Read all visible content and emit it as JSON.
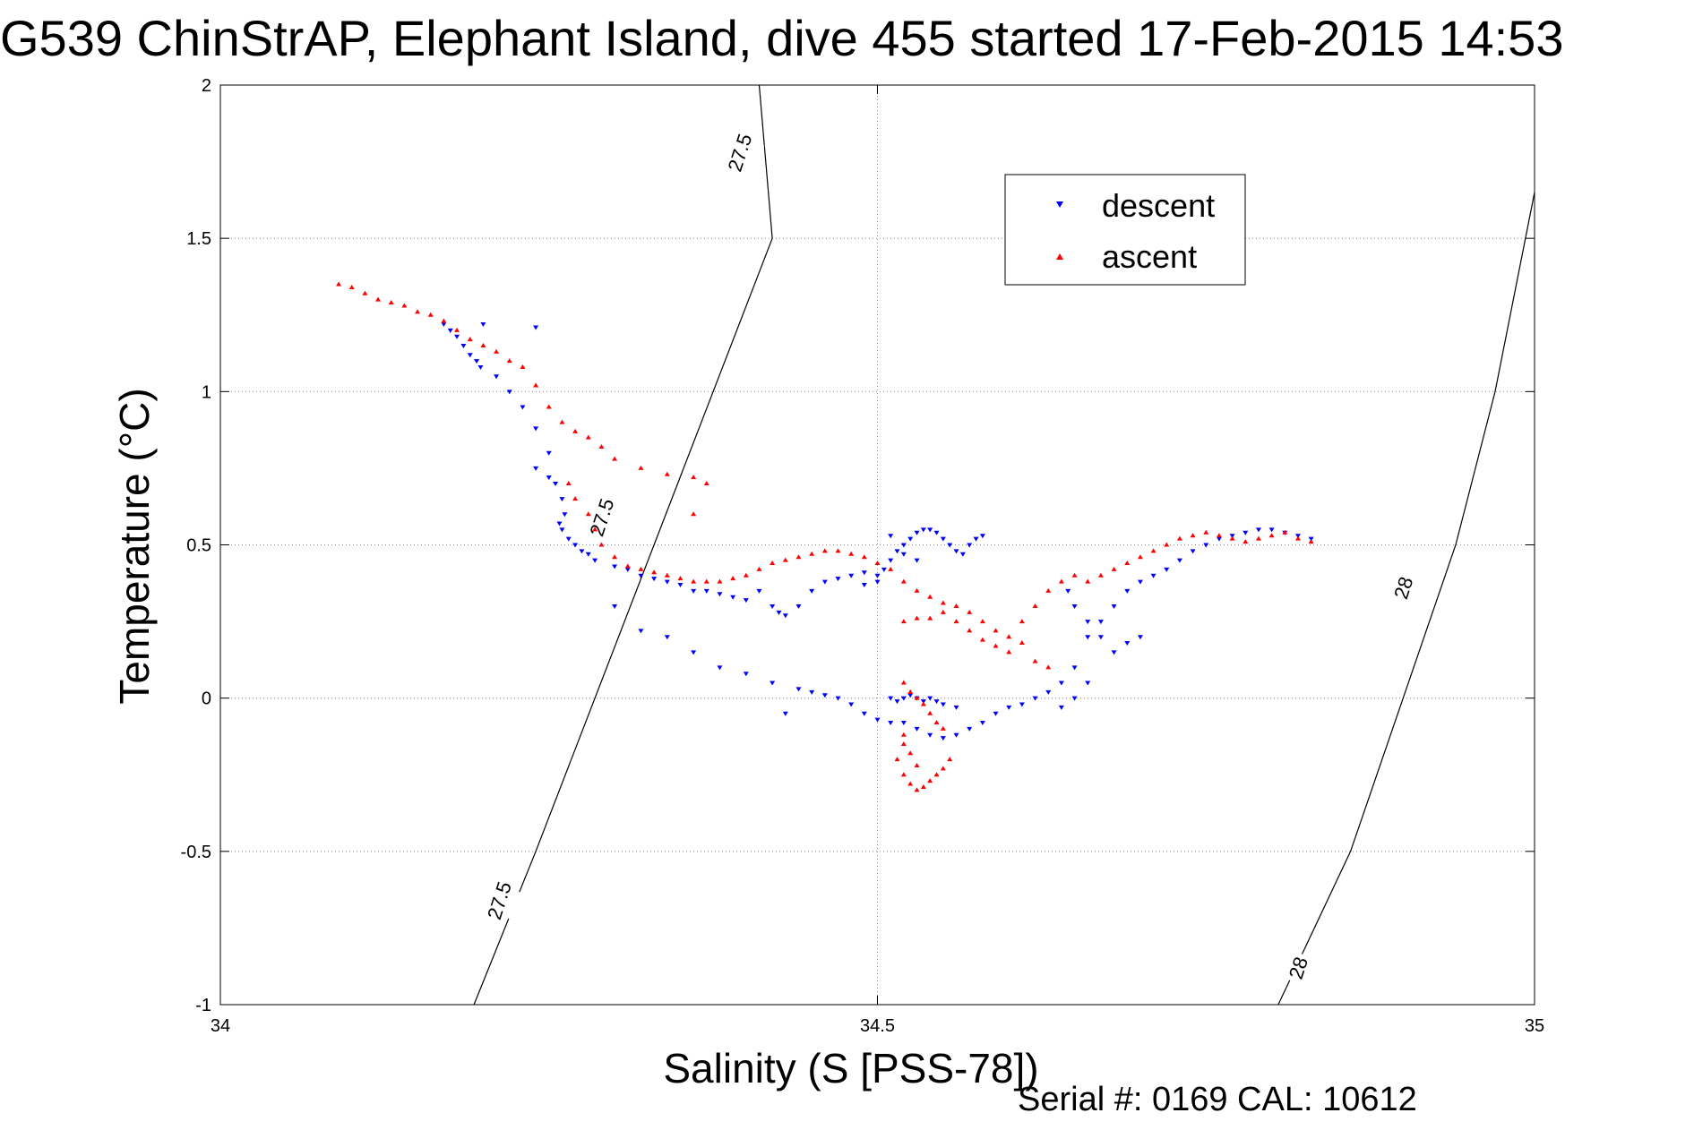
{
  "chart_data": {
    "type": "scatter",
    "title": "G539 ChinStrAP, Elephant Island, dive 455 started 17-Feb-2015 14:53",
    "xlabel": "Salinity (S [PSS-78])",
    "ylabel": "Temperature (°C)",
    "xlim": [
      34,
      35
    ],
    "ylim": [
      -1,
      2
    ],
    "x_ticks": [
      "34",
      "34.5",
      "35"
    ],
    "y_ticks": [
      "2",
      "1.5",
      "1",
      "0.5",
      "0",
      "-0.5",
      "-1"
    ],
    "grid": true,
    "legend": {
      "placement": "top-right",
      "entries": [
        "descent",
        "ascent"
      ]
    },
    "colors": {
      "descent": "#0000ff",
      "ascent": "#ff0000"
    },
    "footer": "Serial #: 0169 CAL: 10612",
    "contours": [
      {
        "label": "27.5",
        "points": [
          [
            34.193,
            -1.0
          ],
          [
            34.24,
            -0.5
          ],
          [
            34.285,
            0.0
          ],
          [
            34.33,
            0.5
          ],
          [
            34.375,
            1.0
          ],
          [
            34.42,
            1.5
          ],
          [
            34.41,
            2.0
          ]
        ]
      },
      {
        "label": "28",
        "points": [
          [
            34.805,
            -1.0
          ],
          [
            34.86,
            -0.5
          ],
          [
            34.9,
            0.0
          ],
          [
            34.94,
            0.5
          ],
          [
            34.97,
            1.0
          ],
          [
            35.0,
            1.65
          ]
        ]
      }
    ],
    "contour_labels": [
      {
        "text": "27.5",
        "x": 34.395,
        "y": 1.78
      },
      {
        "text": "27.5",
        "x": 34.29,
        "y": 0.59
      },
      {
        "text": "27.5",
        "x": 34.212,
        "y": -0.66
      },
      {
        "text": "28",
        "x": 34.9,
        "y": 0.36
      },
      {
        "text": "28",
        "x": 34.82,
        "y": -0.88
      }
    ],
    "series": [
      {
        "name": "descent",
        "marker": "triangle-down",
        "points": [
          [
            34.17,
            1.22
          ],
          [
            34.175,
            1.2
          ],
          [
            34.18,
            1.18
          ],
          [
            34.185,
            1.15
          ],
          [
            34.19,
            1.12
          ],
          [
            34.195,
            1.1
          ],
          [
            34.198,
            1.08
          ],
          [
            34.2,
            1.22
          ],
          [
            34.21,
            1.05
          ],
          [
            34.22,
            1.0
          ],
          [
            34.24,
            1.21
          ],
          [
            34.23,
            0.95
          ],
          [
            34.24,
            0.88
          ],
          [
            34.25,
            0.8
          ],
          [
            34.24,
            0.75
          ],
          [
            34.25,
            0.72
          ],
          [
            34.255,
            0.7
          ],
          [
            34.26,
            0.65
          ],
          [
            34.262,
            0.6
          ],
          [
            34.258,
            0.57
          ],
          [
            34.26,
            0.55
          ],
          [
            34.265,
            0.52
          ],
          [
            34.27,
            0.5
          ],
          [
            34.275,
            0.48
          ],
          [
            34.28,
            0.47
          ],
          [
            34.285,
            0.45
          ],
          [
            34.3,
            0.43
          ],
          [
            34.31,
            0.42
          ],
          [
            34.32,
            0.4
          ],
          [
            34.33,
            0.39
          ],
          [
            34.34,
            0.38
          ],
          [
            34.35,
            0.37
          ],
          [
            34.36,
            0.35
          ],
          [
            34.37,
            0.35
          ],
          [
            34.38,
            0.34
          ],
          [
            34.39,
            0.33
          ],
          [
            34.4,
            0.32
          ],
          [
            34.41,
            0.35
          ],
          [
            34.42,
            0.3
          ],
          [
            34.425,
            0.28
          ],
          [
            34.43,
            0.27
          ],
          [
            34.44,
            0.3
          ],
          [
            34.45,
            0.35
          ],
          [
            34.46,
            0.38
          ],
          [
            34.47,
            0.39
          ],
          [
            34.48,
            0.4
          ],
          [
            34.49,
            0.41
          ],
          [
            34.5,
            0.4
          ],
          [
            34.505,
            0.42
          ],
          [
            34.51,
            0.45
          ],
          [
            34.515,
            0.48
          ],
          [
            34.52,
            0.5
          ],
          [
            34.525,
            0.52
          ],
          [
            34.53,
            0.54
          ],
          [
            34.535,
            0.55
          ],
          [
            34.54,
            0.55
          ],
          [
            34.545,
            0.54
          ],
          [
            34.55,
            0.52
          ],
          [
            34.555,
            0.5
          ],
          [
            34.56,
            0.48
          ],
          [
            34.565,
            0.47
          ],
          [
            34.57,
            0.5
          ],
          [
            34.575,
            0.52
          ],
          [
            34.58,
            0.53
          ],
          [
            34.51,
            0.53
          ],
          [
            34.52,
            0.47
          ],
          [
            34.53,
            0.45
          ],
          [
            34.5,
            0.38
          ],
          [
            34.49,
            0.37
          ],
          [
            34.3,
            0.3
          ],
          [
            34.32,
            0.22
          ],
          [
            34.34,
            0.2
          ],
          [
            34.36,
            0.15
          ],
          [
            34.38,
            0.1
          ],
          [
            34.4,
            0.08
          ],
          [
            34.42,
            0.05
          ],
          [
            34.44,
            0.03
          ],
          [
            34.45,
            0.02
          ],
          [
            34.46,
            0.01
          ],
          [
            34.47,
            0.0
          ],
          [
            34.48,
            -0.02
          ],
          [
            34.49,
            -0.05
          ],
          [
            34.5,
            -0.07
          ],
          [
            34.51,
            -0.08
          ],
          [
            34.52,
            -0.08
          ],
          [
            34.53,
            -0.1
          ],
          [
            34.54,
            -0.12
          ],
          [
            34.55,
            -0.13
          ],
          [
            34.56,
            -0.12
          ],
          [
            34.57,
            -0.1
          ],
          [
            34.58,
            -0.08
          ],
          [
            34.59,
            -0.05
          ],
          [
            34.6,
            -0.03
          ],
          [
            34.61,
            -0.02
          ],
          [
            34.62,
            0.0
          ],
          [
            34.63,
            0.02
          ],
          [
            34.64,
            0.05
          ],
          [
            34.65,
            0.1
          ],
          [
            34.66,
            0.2
          ],
          [
            34.67,
            0.25
          ],
          [
            34.68,
            0.3
          ],
          [
            34.69,
            0.35
          ],
          [
            34.7,
            0.38
          ],
          [
            34.71,
            0.4
          ],
          [
            34.72,
            0.42
          ],
          [
            34.73,
            0.45
          ],
          [
            34.74,
            0.48
          ],
          [
            34.75,
            0.5
          ],
          [
            34.76,
            0.52
          ],
          [
            34.77,
            0.53
          ],
          [
            34.78,
            0.54
          ],
          [
            34.79,
            0.55
          ],
          [
            34.8,
            0.55
          ],
          [
            34.81,
            0.54
          ],
          [
            34.82,
            0.53
          ],
          [
            34.83,
            0.52
          ],
          [
            34.645,
            0.35
          ],
          [
            34.65,
            0.3
          ],
          [
            34.66,
            0.25
          ],
          [
            34.67,
            0.2
          ],
          [
            34.68,
            0.15
          ],
          [
            34.69,
            0.18
          ],
          [
            34.7,
            0.2
          ],
          [
            34.66,
            0.05
          ],
          [
            34.65,
            0.0
          ],
          [
            34.64,
            -0.03
          ],
          [
            34.43,
            -0.05
          ],
          [
            34.51,
            0.0
          ],
          [
            34.515,
            -0.01
          ],
          [
            34.52,
            0.0
          ],
          [
            34.525,
            0.01
          ],
          [
            34.53,
            0.0
          ],
          [
            34.535,
            -0.01
          ],
          [
            34.54,
            0.0
          ],
          [
            34.545,
            -0.01
          ],
          [
            34.55,
            -0.02
          ],
          [
            34.56,
            -0.03
          ]
        ]
      },
      {
        "name": "ascent",
        "marker": "triangle-up",
        "points": [
          [
            34.09,
            1.35
          ],
          [
            34.1,
            1.34
          ],
          [
            34.11,
            1.32
          ],
          [
            34.12,
            1.3
          ],
          [
            34.13,
            1.29
          ],
          [
            34.14,
            1.28
          ],
          [
            34.15,
            1.26
          ],
          [
            34.16,
            1.25
          ],
          [
            34.17,
            1.23
          ],
          [
            34.18,
            1.2
          ],
          [
            34.19,
            1.17
          ],
          [
            34.2,
            1.15
          ],
          [
            34.21,
            1.13
          ],
          [
            34.22,
            1.1
          ],
          [
            34.23,
            1.08
          ],
          [
            34.24,
            1.02
          ],
          [
            34.25,
            0.95
          ],
          [
            34.26,
            0.9
          ],
          [
            34.27,
            0.87
          ],
          [
            34.28,
            0.85
          ],
          [
            34.29,
            0.82
          ],
          [
            34.3,
            0.78
          ],
          [
            34.32,
            0.75
          ],
          [
            34.34,
            0.73
          ],
          [
            34.36,
            0.72
          ],
          [
            34.37,
            0.7
          ],
          [
            34.36,
            0.6
          ],
          [
            34.265,
            0.7
          ],
          [
            34.27,
            0.65
          ],
          [
            34.28,
            0.6
          ],
          [
            34.285,
            0.55
          ],
          [
            34.29,
            0.5
          ],
          [
            34.3,
            0.46
          ],
          [
            34.31,
            0.43
          ],
          [
            34.32,
            0.42
          ],
          [
            34.33,
            0.41
          ],
          [
            34.34,
            0.4
          ],
          [
            34.35,
            0.39
          ],
          [
            34.36,
            0.38
          ],
          [
            34.37,
            0.38
          ],
          [
            34.38,
            0.38
          ],
          [
            34.39,
            0.39
          ],
          [
            34.4,
            0.4
          ],
          [
            34.41,
            0.42
          ],
          [
            34.42,
            0.44
          ],
          [
            34.43,
            0.45
          ],
          [
            34.44,
            0.46
          ],
          [
            34.45,
            0.47
          ],
          [
            34.46,
            0.48
          ],
          [
            34.47,
            0.48
          ],
          [
            34.48,
            0.47
          ],
          [
            34.49,
            0.46
          ],
          [
            34.5,
            0.44
          ],
          [
            34.51,
            0.42
          ],
          [
            34.52,
            0.38
          ],
          [
            34.53,
            0.35
          ],
          [
            34.54,
            0.33
          ],
          [
            34.55,
            0.31
          ],
          [
            34.56,
            0.3
          ],
          [
            34.57,
            0.28
          ],
          [
            34.58,
            0.25
          ],
          [
            34.59,
            0.22
          ],
          [
            34.6,
            0.2
          ],
          [
            34.61,
            0.18
          ],
          [
            34.6,
            0.15
          ],
          [
            34.59,
            0.17
          ],
          [
            34.58,
            0.19
          ],
          [
            34.57,
            0.22
          ],
          [
            34.56,
            0.25
          ],
          [
            34.55,
            0.28
          ],
          [
            34.54,
            0.26
          ],
          [
            34.53,
            0.26
          ],
          [
            34.52,
            0.25
          ],
          [
            34.62,
            0.12
          ],
          [
            34.63,
            0.1
          ],
          [
            34.61,
            0.25
          ],
          [
            34.62,
            0.3
          ],
          [
            34.63,
            0.35
          ],
          [
            34.64,
            0.38
          ],
          [
            34.65,
            0.4
          ],
          [
            34.66,
            0.38
          ],
          [
            34.67,
            0.4
          ],
          [
            34.68,
            0.42
          ],
          [
            34.69,
            0.44
          ],
          [
            34.7,
            0.46
          ],
          [
            34.71,
            0.48
          ],
          [
            34.72,
            0.5
          ],
          [
            34.73,
            0.52
          ],
          [
            34.74,
            0.53
          ],
          [
            34.75,
            0.54
          ],
          [
            34.76,
            0.53
          ],
          [
            34.77,
            0.52
          ],
          [
            34.78,
            0.51
          ],
          [
            34.79,
            0.52
          ],
          [
            34.8,
            0.53
          ],
          [
            34.81,
            0.54
          ],
          [
            34.82,
            0.52
          ],
          [
            34.83,
            0.51
          ],
          [
            34.52,
            0.05
          ],
          [
            34.525,
            0.02
          ],
          [
            34.53,
            0.0
          ],
          [
            34.535,
            -0.02
          ],
          [
            34.54,
            -0.05
          ],
          [
            34.545,
            -0.08
          ],
          [
            34.55,
            -0.1
          ],
          [
            34.52,
            -0.15
          ],
          [
            34.515,
            -0.2
          ],
          [
            34.52,
            -0.25
          ],
          [
            34.525,
            -0.28
          ],
          [
            34.53,
            -0.3
          ],
          [
            34.535,
            -0.29
          ],
          [
            34.54,
            -0.27
          ],
          [
            34.545,
            -0.25
          ],
          [
            34.55,
            -0.23
          ],
          [
            34.555,
            -0.2
          ],
          [
            34.53,
            -0.22
          ],
          [
            34.525,
            -0.18
          ],
          [
            34.52,
            -0.12
          ]
        ]
      }
    ]
  }
}
